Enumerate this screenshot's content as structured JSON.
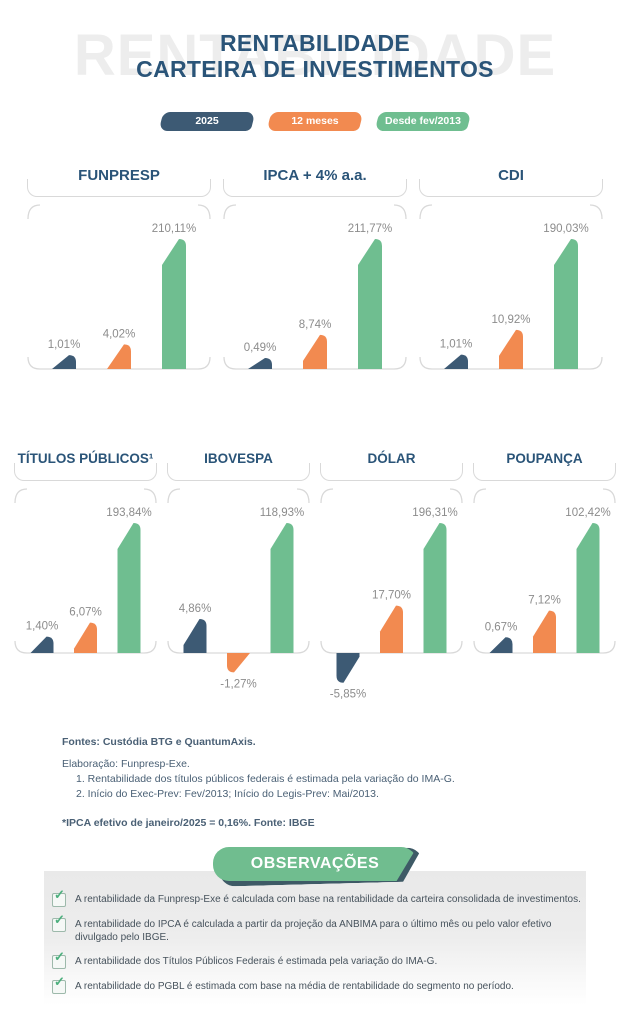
{
  "header": {
    "watermark": "RENTABILIDADE",
    "title_line1": "RENTABILIDADE",
    "title_line2": "CARTEIRA DE INVESTIMENTOS"
  },
  "legend": [
    {
      "label": "2025",
      "color": "#3d5a74"
    },
    {
      "label": "12 meses",
      "color": "#f28a50"
    },
    {
      "label": "Desde fev/2013",
      "color": "#6fbe90"
    }
  ],
  "chart_data": {
    "type": "bar",
    "series_labels": [
      "2025",
      "12 meses",
      "Desde fev/2013"
    ],
    "bar_colors": [
      "#3d5a74",
      "#f28a50",
      "#6fbe90"
    ],
    "value_label_color": "#8c8c8c",
    "charts": [
      {
        "title": "FUNPRESP",
        "values": [
          1.01,
          4.02,
          210.11
        ],
        "labels": [
          "1,01%",
          "4,02%",
          "210,11%"
        ]
      },
      {
        "title": "IPCA + 4% a.a.",
        "values": [
          0.49,
          8.74,
          211.77
        ],
        "labels": [
          "0,49%",
          "8,74%",
          "211,77%"
        ]
      },
      {
        "title": "CDI",
        "values": [
          1.01,
          10.92,
          190.03
        ],
        "labels": [
          "1,01%",
          "10,92%",
          "190,03%"
        ]
      },
      {
        "title": "TÍTULOS PÚBLICOS¹",
        "values": [
          1.4,
          6.07,
          193.84
        ],
        "labels": [
          "1,40%",
          "6,07%",
          "193,84%"
        ]
      },
      {
        "title": "IBOVESPA",
        "values": [
          4.86,
          -1.27,
          118.93
        ],
        "labels": [
          "4,86%",
          "-1,27%",
          "118,93%"
        ]
      },
      {
        "title": "DÓLAR",
        "values": [
          -5.85,
          17.7,
          196.31
        ],
        "labels": [
          "-5,85%",
          "17,70%",
          "196,31%"
        ]
      },
      {
        "title": "POUPANÇA",
        "values": [
          0.67,
          7.12,
          102.42
        ],
        "labels": [
          "0,67%",
          "7,12%",
          "102,42%"
        ]
      }
    ]
  },
  "notes": {
    "fontes": "Fontes: Custódia BTG e QuantumAxis.",
    "elaboracao": "Elaboração: Funpresp-Exe.",
    "nota1": "1. Rentabilidade dos títulos públicos federais é estimada pela variação do IMA-G.",
    "nota2": "2. Início do Exec-Prev: Fev/2013; Início do Legis-Prev: Mai/2013.",
    "ipca": "*IPCA efetivo de janeiro/2025 = 0,16%. Fonte: IBGE"
  },
  "observations": {
    "badge": "OBSERVAÇÕES",
    "badge_color": "#70bd8f",
    "items": [
      "A rentabilidade da Funpresp-Exe é calculada com base na rentabilidade da carteira consolidada de investimentos.",
      "A rentabilidade do IPCA é calculada a partir da projeção da ANBIMA para o último mês ou pelo valor efetivo divulgado pelo IBGE.",
      "A rentabilidade dos Títulos Públicos Federais é estimada pela variação do IMA-G.",
      "A rentabilidade do PGBL é estimada com base na média de rentabilidade do segmento no período."
    ]
  }
}
